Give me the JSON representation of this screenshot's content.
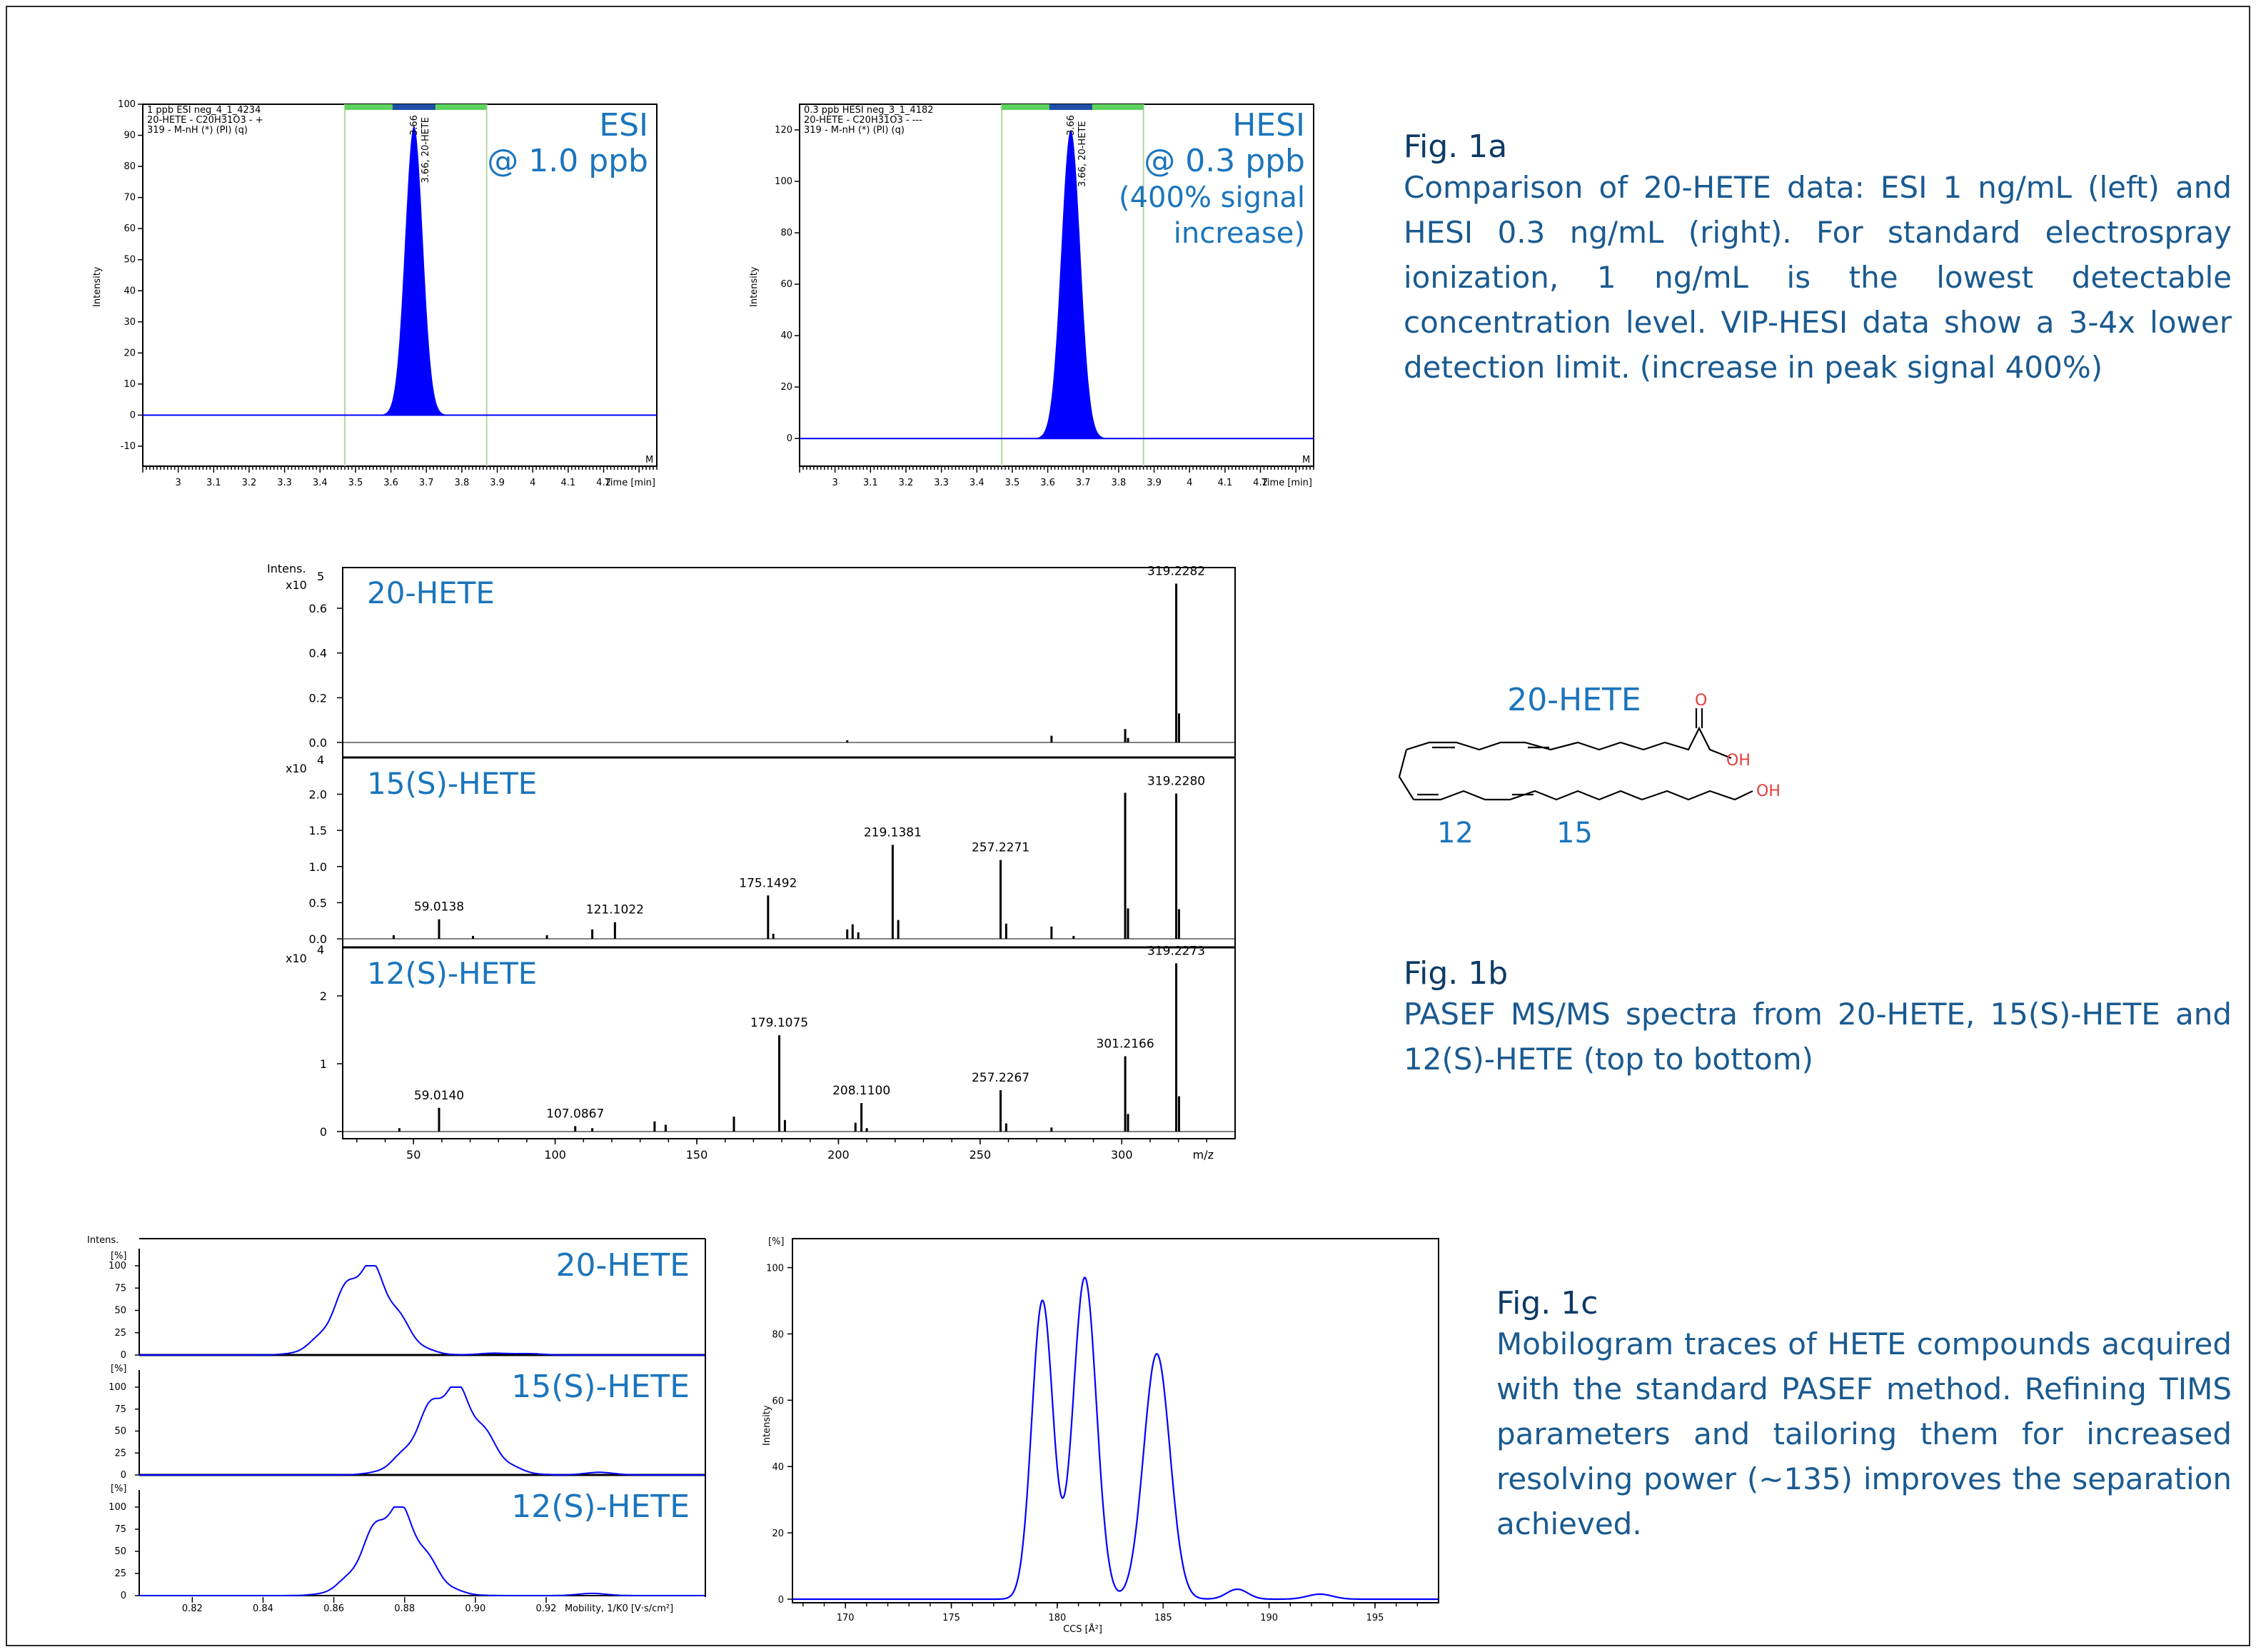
{
  "chart_data": [
    {
      "type": "line",
      "panel": "chromatogram-esi",
      "header": [
        "1 ppb ESI neg_4_1_4234",
        "20-HETE - C20H31O3 - +",
        "319 - M-nH (*) (PI) (q)"
      ],
      "overlay": [
        "ESI",
        "@ 1.0 ppb"
      ],
      "peak_label": "3.66",
      "peak_annot": "3.66, 20-HETE",
      "corner": "M",
      "ylabel": "Intensity",
      "xlabel": "Time [min]",
      "xlim": [
        2.9,
        4.35
      ],
      "ylim": [
        -10,
        100
      ],
      "yticks": [
        -10,
        0,
        10,
        20,
        30,
        40,
        50,
        60,
        70,
        80,
        90,
        100
      ],
      "xticks": [
        3,
        3.1,
        3.2,
        3.3,
        3.4,
        3.5,
        3.6,
        3.7,
        3.8,
        3.9,
        4,
        4.1,
        4.2
      ],
      "window": [
        3.47,
        3.87
      ],
      "peak": {
        "center": 3.665,
        "height": 93,
        "width": 0.025
      },
      "color": "#0000ff"
    },
    {
      "type": "line",
      "panel": "chromatogram-hesi",
      "header": [
        "0.3 ppb HESI neg_3_1_4182",
        "20-HETE - C20H31O3 - ---",
        "319 - M-nH (*) (PI) (q)"
      ],
      "overlay": [
        "HESI",
        "@ 0.3 ppb",
        "(400% signal",
        "increase)"
      ],
      "peak_label": "3.66",
      "peak_annot": "3.66, 20-HETE",
      "corner": "M",
      "ylabel": "Intensity",
      "xlabel": "Time [min]",
      "xlim": [
        2.9,
        4.35
      ],
      "ylim": [
        -3,
        130
      ],
      "yticks": [
        0,
        20,
        40,
        60,
        80,
        100,
        120
      ],
      "xticks": [
        3,
        3.1,
        3.2,
        3.3,
        3.4,
        3.5,
        3.6,
        3.7,
        3.8,
        3.9,
        4,
        4.1,
        4.2
      ],
      "window": [
        3.47,
        3.87
      ],
      "peak": {
        "center": 3.665,
        "height": 120,
        "width": 0.027
      },
      "color": "#0000ff"
    },
    {
      "type": "bar",
      "panel": "ms-ms-spectra",
      "ylabel": "Intens.",
      "xlabel": "m/z",
      "xlim": [
        25,
        340
      ],
      "xticks": [
        50,
        100,
        150,
        200,
        250,
        300
      ],
      "series": [
        {
          "name": "20-HETE",
          "exponent_label": "x10 5",
          "yticks": [
            0.0,
            0.2,
            0.4,
            0.6
          ],
          "ymax": 0.75,
          "peaks": [
            [
              319.2282,
              0.71
            ],
            [
              301.2,
              0.06
            ],
            [
              275.2,
              0.03
            ],
            [
              203.1,
              0.01
            ],
            [
              320.2,
              0.13
            ],
            [
              302.2,
              0.02
            ]
          ],
          "labels": [
            {
              "mz": 319.2282,
              "text": "319.2282"
            }
          ]
        },
        {
          "name": "15(S)-HETE",
          "exponent_label": "x10 4",
          "yticks": [
            0.0,
            0.5,
            1.0,
            1.5,
            2.0
          ],
          "ymax": 2.4,
          "peaks": [
            [
              59.0138,
              0.27
            ],
            [
              43.0,
              0.05
            ],
            [
              71.0,
              0.04
            ],
            [
              113.1,
              0.13
            ],
            [
              121.1022,
              0.23
            ],
            [
              97.1,
              0.05
            ],
            [
              175.1492,
              0.6
            ],
            [
              177.0,
              0.07
            ],
            [
              203.1,
              0.13
            ],
            [
              205.0,
              0.2
            ],
            [
              207.0,
              0.09
            ],
            [
              219.1381,
              1.3
            ],
            [
              221.1,
              0.26
            ],
            [
              257.2271,
              1.09
            ],
            [
              259.2,
              0.21
            ],
            [
              275.2,
              0.17
            ],
            [
              283.0,
              0.04
            ],
            [
              301.2,
              2.02
            ],
            [
              302.2,
              0.42
            ],
            [
              319.228,
              2.01
            ],
            [
              320.2,
              0.41
            ]
          ],
          "labels": [
            {
              "mz": 59.0138,
              "text": "59.0138"
            },
            {
              "mz": 121.1022,
              "text": "121.1022"
            },
            {
              "mz": 175.1492,
              "text": "175.1492"
            },
            {
              "mz": 219.1381,
              "text": "219.1381"
            },
            {
              "mz": 257.2271,
              "text": "257.2271"
            },
            {
              "mz": 319.228,
              "text": "319.2280"
            }
          ]
        },
        {
          "name": "12(S)-HETE",
          "exponent_label": "x10 4",
          "yticks": [
            0,
            1,
            2
          ],
          "ymax": 2.6,
          "peaks": [
            [
              59.014,
              0.35
            ],
            [
              45.0,
              0.05
            ],
            [
              107.0867,
              0.08
            ],
            [
              113.1,
              0.05
            ],
            [
              135.1,
              0.15
            ],
            [
              139.0,
              0.1
            ],
            [
              163.1,
              0.22
            ],
            [
              179.1075,
              1.42
            ],
            [
              181.1,
              0.17
            ],
            [
              206.0,
              0.13
            ],
            [
              208.11,
              0.42
            ],
            [
              210.0,
              0.05
            ],
            [
              257.2267,
              0.61
            ],
            [
              259.2,
              0.12
            ],
            [
              275.2,
              0.06
            ],
            [
              301.2166,
              1.11
            ],
            [
              302.2,
              0.26
            ],
            [
              319.2273,
              2.48
            ],
            [
              320.2,
              0.52
            ]
          ],
          "labels": [
            {
              "mz": 59.014,
              "text": "59.0140"
            },
            {
              "mz": 107.0867,
              "text": "107.0867"
            },
            {
              "mz": 179.1075,
              "text": "179.1075"
            },
            {
              "mz": 208.11,
              "text": "208.1100"
            },
            {
              "mz": 257.2267,
              "text": "257.2267"
            },
            {
              "mz": 301.2166,
              "text": "301.2166"
            },
            {
              "mz": 319.2273,
              "text": "319.2273"
            }
          ]
        }
      ]
    },
    {
      "type": "line",
      "panel": "mobilograms",
      "ylabel": "Intens.",
      "yunit": "[%]",
      "xlabel": "Mobility, 1/K0 [V·s/cm²]",
      "xlim": [
        0.805,
        0.965
      ],
      "xticks": [
        0.82,
        0.84,
        0.86,
        0.88,
        0.9,
        0.92
      ],
      "yticks": [
        0,
        25,
        50,
        75,
        100
      ],
      "series": [
        {
          "name": "20-HETE",
          "center": 0.869,
          "sigma": 0.0078,
          "small": [
            [
              0.905,
              2
            ],
            [
              0.915,
              1.5
            ]
          ]
        },
        {
          "name": "15(S)-HETE",
          "center": 0.893,
          "sigma": 0.0085,
          "small": [
            [
              0.935,
              3
            ]
          ]
        },
        {
          "name": "12(S)-HETE",
          "center": 0.877,
          "sigma": 0.0078,
          "small": [
            [
              0.933,
              2.5
            ]
          ]
        }
      ],
      "color": "#0000ff"
    },
    {
      "type": "line",
      "panel": "ccs-trace",
      "ylabel": "Intensity",
      "yunit": "[%]",
      "xlabel": "CCS [Å²]",
      "xlim": [
        167.5,
        198
      ],
      "ylim": [
        0,
        104
      ],
      "xticks": [
        170,
        175,
        180,
        185,
        190,
        195
      ],
      "yticks": [
        0,
        20,
        40,
        60,
        80,
        100
      ],
      "peaks": [
        {
          "center": 179.3,
          "height": 90,
          "sigma": 0.5
        },
        {
          "center": 181.3,
          "height": 97,
          "sigma": 0.55
        },
        {
          "center": 184.7,
          "height": 74,
          "sigma": 0.62
        },
        {
          "center": 188.5,
          "height": 3,
          "sigma": 0.5
        },
        {
          "center": 192.4,
          "height": 1.5,
          "sigma": 0.6
        }
      ],
      "color": "#0000ff"
    }
  ],
  "structure": {
    "name": "20-HETE",
    "o_label": "O",
    "oh_label": "OH",
    "label_12": "12",
    "label_15": "15"
  },
  "captions": {
    "fig1a": {
      "title": "Fig. 1a",
      "text": "Comparison of 20-HETE data: ESI 1 ng/mL (left) and HESI 0.3 ng/mL (right). For standard electrospray ionization, 1 ng/mL is the lowest detectable concentration level. VIP-HESI data show a 3-4x lower detection limit. (increase in peak signal 400%)"
    },
    "fig1b": {
      "title": "Fig. 1b",
      "text": "PASEF MS/MS spectra from 20-HETE, 15(S)-HETE and 12(S)-HETE (top to bottom)"
    },
    "fig1c": {
      "title": "Fig. 1c",
      "text": "Mobilogram traces of HETE compounds acquired with the standard PASEF method. Refining TIMS parameters and tailoring them for increased resolving power (~135) improves the separation achieved."
    }
  }
}
